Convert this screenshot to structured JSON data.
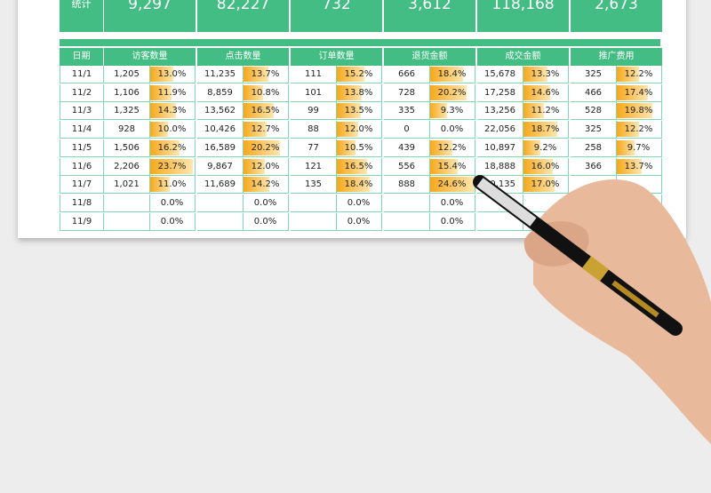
{
  "summary": {
    "label": "统计",
    "values": [
      "9,297",
      "82,227",
      "732",
      "3,612",
      "118,168",
      "2,673"
    ]
  },
  "table": {
    "date_header": "日期",
    "columns": [
      "访客数量",
      "点击数量",
      "订单数量",
      "退货金额",
      "成交金额",
      "推广费用"
    ],
    "dates": [
      "11/1",
      "11/2",
      "11/3",
      "11/4",
      "11/5",
      "11/6",
      "11/7",
      "11/8",
      "11/9"
    ],
    "rows": [
      [
        [
          "1,205",
          "13.0%"
        ],
        [
          "11,235",
          "13.7%"
        ],
        [
          "111",
          "15.2%"
        ],
        [
          "666",
          "18.4%"
        ],
        [
          "15,678",
          "13.3%"
        ],
        [
          "325",
          "12.2%"
        ]
      ],
      [
        [
          "1,106",
          "11.9%"
        ],
        [
          "8,859",
          "10.8%"
        ],
        [
          "101",
          "13.8%"
        ],
        [
          "728",
          "20.2%"
        ],
        [
          "17,258",
          "14.6%"
        ],
        [
          "466",
          "17.4%"
        ]
      ],
      [
        [
          "1,325",
          "14.3%"
        ],
        [
          "13,562",
          "16.5%"
        ],
        [
          "99",
          "13.5%"
        ],
        [
          "335",
          "9.3%"
        ],
        [
          "13,256",
          "11.2%"
        ],
        [
          "528",
          "19.8%"
        ]
      ],
      [
        [
          "928",
          "10.0%"
        ],
        [
          "10,426",
          "12.7%"
        ],
        [
          "88",
          "12.0%"
        ],
        [
          "0",
          "0.0%"
        ],
        [
          "22,056",
          "18.7%"
        ],
        [
          "325",
          "12.2%"
        ]
      ],
      [
        [
          "1,506",
          "16.2%"
        ],
        [
          "16,589",
          "20.2%"
        ],
        [
          "77",
          "10.5%"
        ],
        [
          "439",
          "12.2%"
        ],
        [
          "10,897",
          "9.2%"
        ],
        [
          "258",
          "9.7%"
        ]
      ],
      [
        [
          "2,206",
          "23.7%"
        ],
        [
          "9,867",
          "12.0%"
        ],
        [
          "121",
          "16.5%"
        ],
        [
          "556",
          "15.4%"
        ],
        [
          "18,888",
          "16.0%"
        ],
        [
          "366",
          "13.7%"
        ]
      ],
      [
        [
          "1,021",
          "11.0%"
        ],
        [
          "11,689",
          "14.2%"
        ],
        [
          "135",
          "18.4%"
        ],
        [
          "888",
          "24.6%"
        ],
        [
          "20,135",
          "17.0%"
        ],
        [
          "",
          ""
        ]
      ],
      [
        [
          "",
          "0.0%"
        ],
        [
          "",
          "0.0%"
        ],
        [
          "",
          "0.0%"
        ],
        [
          "",
          "0.0%"
        ],
        [
          "",
          ""
        ],
        [
          "",
          ""
        ]
      ],
      [
        [
          "",
          "0.0%"
        ],
        [
          "",
          "0.0%"
        ],
        [
          "",
          "0.0%"
        ],
        [
          "",
          "0.0%"
        ],
        [
          "",
          ""
        ],
        [
          "",
          ""
        ]
      ]
    ]
  },
  "colors": {
    "header_green": "#44bd84",
    "grid": "#7fd9b3",
    "bar": "#f6a81c"
  }
}
